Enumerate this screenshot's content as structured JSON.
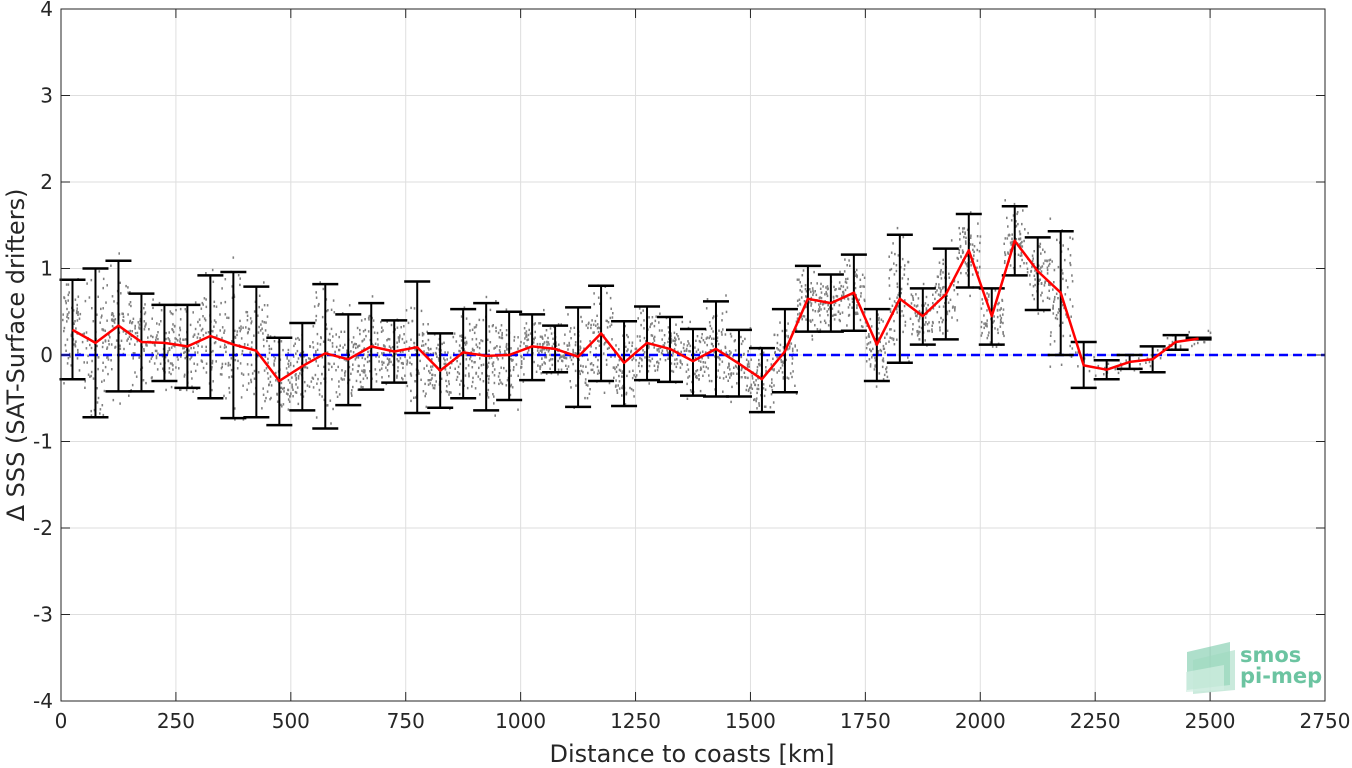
{
  "chart_data": {
    "type": "line",
    "title": "",
    "xlabel": "Distance to coasts [km]",
    "ylabel": "Δ SSS (SAT-Surface drifters)",
    "xlim": [
      0,
      2750
    ],
    "ylim": [
      -4,
      4
    ],
    "xticks": [
      0,
      250,
      500,
      750,
      1000,
      1250,
      1500,
      1750,
      2000,
      2250,
      2500,
      2750
    ],
    "yticks": [
      -4,
      -3,
      -2,
      -1,
      0,
      1,
      2,
      3,
      4
    ],
    "grid": true,
    "series": [
      {
        "role": "mean",
        "color": "#ff0000",
        "x": [
          25,
          75,
          125,
          175,
          225,
          275,
          325,
          375,
          425,
          475,
          525,
          575,
          625,
          675,
          725,
          775,
          825,
          875,
          925,
          975,
          1025,
          1075,
          1125,
          1175,
          1225,
          1275,
          1325,
          1375,
          1425,
          1475,
          1525,
          1575,
          1625,
          1675,
          1725,
          1775,
          1825,
          1875,
          1925,
          1975,
          2025,
          2075,
          2125,
          2175,
          2225,
          2275,
          2325,
          2375,
          2425,
          2475
        ],
        "y": [
          0.29,
          0.14,
          0.34,
          0.15,
          0.14,
          0.1,
          0.22,
          0.12,
          0.05,
          -0.3,
          -0.13,
          0.02,
          -0.05,
          0.1,
          0.04,
          0.09,
          -0.18,
          0.03,
          -0.01,
          0.0,
          0.1,
          0.07,
          -0.02,
          0.25,
          -0.09,
          0.14,
          0.07,
          -0.07,
          0.07,
          -0.1,
          -0.28,
          0.04,
          0.65,
          0.6,
          0.72,
          0.12,
          0.65,
          0.45,
          0.7,
          1.21,
          0.45,
          1.32,
          0.97,
          0.72,
          -0.12,
          -0.17,
          -0.08,
          -0.05,
          0.15,
          0.19
        ]
      },
      {
        "role": "std_errorbars",
        "color": "#000000",
        "x": [
          25,
          75,
          125,
          175,
          225,
          275,
          325,
          375,
          425,
          475,
          525,
          575,
          625,
          675,
          725,
          775,
          825,
          875,
          925,
          975,
          1025,
          1075,
          1125,
          1175,
          1225,
          1275,
          1325,
          1375,
          1425,
          1475,
          1525,
          1575,
          1625,
          1675,
          1725,
          1775,
          1825,
          1875,
          1925,
          1975,
          2025,
          2075,
          2125,
          2175,
          2225,
          2275,
          2325,
          2375,
          2425,
          2475
        ],
        "low": [
          -0.28,
          -0.72,
          -0.42,
          -0.42,
          -0.3,
          -0.38,
          -0.5,
          -0.73,
          -0.72,
          -0.81,
          -0.64,
          -0.85,
          -0.58,
          -0.4,
          -0.32,
          -0.67,
          -0.61,
          -0.5,
          -0.64,
          -0.52,
          -0.29,
          -0.2,
          -0.6,
          -0.3,
          -0.59,
          -0.29,
          -0.31,
          -0.47,
          -0.48,
          -0.48,
          -0.66,
          -0.43,
          0.27,
          0.27,
          0.28,
          -0.3,
          -0.09,
          0.12,
          0.18,
          0.78,
          0.12,
          0.92,
          0.52,
          0.0,
          -0.38,
          -0.28,
          -0.16,
          -0.2,
          0.06,
          0.18
        ],
        "high": [
          0.87,
          1.0,
          1.09,
          0.71,
          0.58,
          0.58,
          0.92,
          0.96,
          0.79,
          0.2,
          0.37,
          0.82,
          0.47,
          0.6,
          0.4,
          0.85,
          0.25,
          0.53,
          0.6,
          0.5,
          0.47,
          0.34,
          0.55,
          0.8,
          0.39,
          0.56,
          0.44,
          0.3,
          0.62,
          0.29,
          0.08,
          0.53,
          1.03,
          0.93,
          1.16,
          0.53,
          1.39,
          0.77,
          1.23,
          1.63,
          0.77,
          1.72,
          1.36,
          1.43,
          0.15,
          -0.06,
          0.0,
          0.1,
          0.23,
          0.2
        ]
      },
      {
        "role": "zero_reference",
        "color": "#0000ff",
        "style": "dashed",
        "y": 0
      },
      {
        "role": "individual_points",
        "color": "#808080",
        "style": "scatter"
      }
    ]
  },
  "logo": {
    "line1": "smos",
    "line2": "pi-mep",
    "color": "#6cc4a1"
  }
}
